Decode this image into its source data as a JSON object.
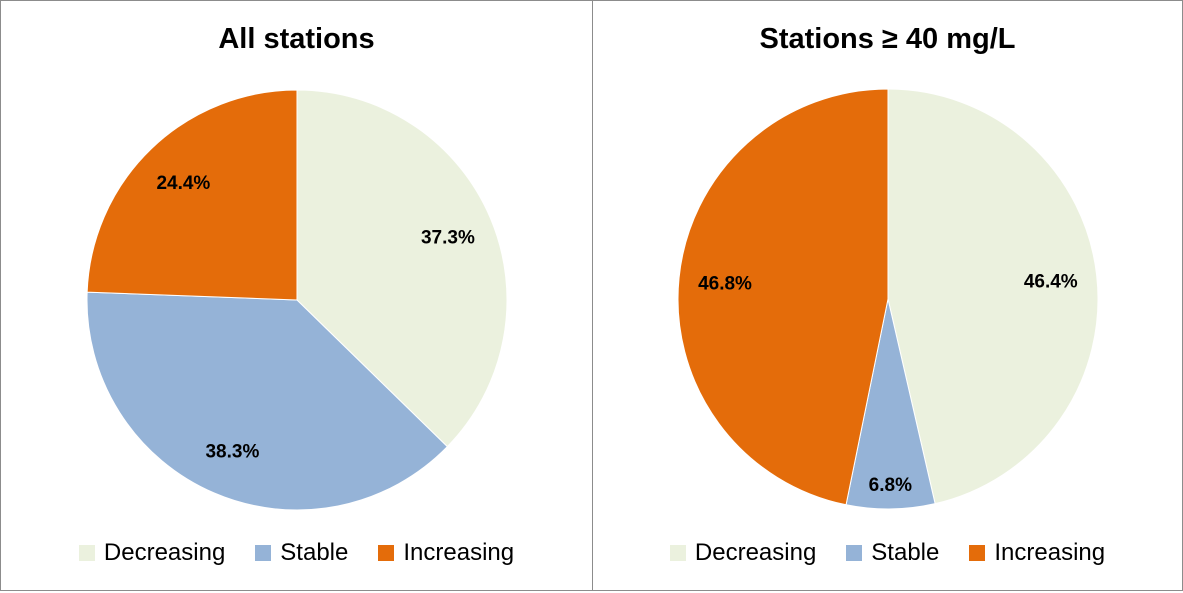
{
  "chart_data": [
    {
      "type": "pie",
      "title": "All stations",
      "categories": [
        "Decreasing",
        "Stable",
        "Increasing"
      ],
      "values": [
        37.3,
        38.3,
        24.4
      ],
      "labels": [
        "37.3%",
        "38.3%",
        "24.4%"
      ],
      "colors": [
        "#ebf1de",
        "#95b3d7",
        "#e46c0a"
      ],
      "legend": "bottom"
    },
    {
      "type": "pie",
      "title": "Stations ≥ 40 mg/L",
      "categories": [
        "Decreasing",
        "Stable",
        "Increasing"
      ],
      "values": [
        46.4,
        6.8,
        46.8
      ],
      "labels": [
        "46.4%",
        "6.8%",
        "46.8%"
      ],
      "colors": [
        "#ebf1de",
        "#95b3d7",
        "#e46c0a"
      ],
      "legend": "bottom"
    }
  ]
}
